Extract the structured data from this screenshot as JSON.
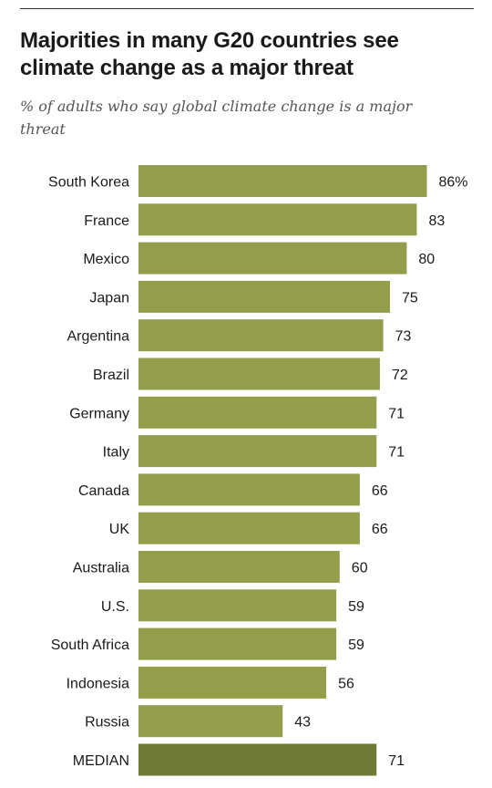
{
  "title": "Majorities in many G20 countries see climate change as a major threat",
  "subtitle": "% of adults who say global climate change is a major threat",
  "colors": {
    "bar": "#939d4a",
    "median_bar": "#6e7a36"
  },
  "chart_data": {
    "type": "bar",
    "orientation": "horizontal",
    "categories": [
      "South Korea",
      "France",
      "Mexico",
      "Japan",
      "Argentina",
      "Brazil",
      "Germany",
      "Italy",
      "Canada",
      "UK",
      "Australia",
      "U.S.",
      "South Africa",
      "Indonesia",
      "Russia",
      "MEDIAN"
    ],
    "values": [
      86,
      83,
      80,
      75,
      73,
      72,
      71,
      71,
      66,
      66,
      60,
      59,
      59,
      56,
      43,
      71
    ],
    "data_labels": [
      "86%",
      "83",
      "80",
      "75",
      "73",
      "72",
      "71",
      "71",
      "66",
      "66",
      "60",
      "59",
      "59",
      "56",
      "43",
      "71"
    ],
    "title": "Majorities in many G20 countries see climate change as a major threat",
    "subtitle": "% of adults who say global climate change is a major threat",
    "xlabel": "",
    "ylabel": "",
    "xlim": [
      0,
      100
    ],
    "grid": false,
    "legend": "none"
  }
}
